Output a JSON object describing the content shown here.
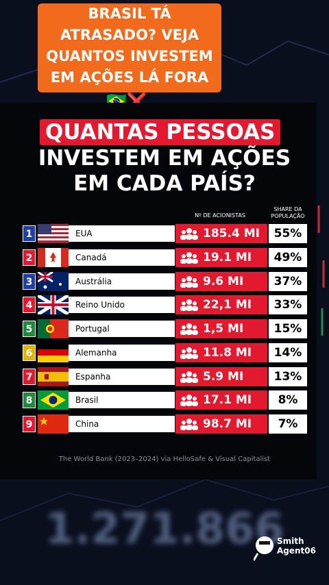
{
  "promo": {
    "lines": [
      "BRASIL TÁ",
      "ATRASADO? VEJA",
      "QUANTOS INVESTEM",
      "EM AÇÕES LÁ FORA"
    ],
    "emoji": "🇧🇷❌"
  },
  "header": {
    "title_highlight": "QUANTAS PESSOAS",
    "title_lines": [
      "INVESTEM EM AÇÕES",
      "EM CADA PAÍS?"
    ]
  },
  "table": {
    "columns": [
      "Nº DE ACIONISTAS",
      "SHARE DA",
      "POPULAÇÃO"
    ],
    "rows": [
      [
        "1",
        "EUA",
        "185.4 MI",
        "55%"
      ],
      [
        "2",
        "Canadá",
        "19.1 MI",
        "49%"
      ],
      [
        "3",
        "Austrália",
        "9.6 MI",
        "37%"
      ],
      [
        "4",
        "Reino Unido",
        "22,1 MI",
        "33%"
      ],
      [
        "5",
        "Portugal",
        "1,5 MI",
        "15%"
      ],
      [
        "6",
        "Alemanha",
        "11.8 MI",
        "14%"
      ],
      [
        "7",
        "Espanha",
        "5.9 MI",
        "13%"
      ],
      [
        "8",
        "Brasil",
        "17.1 MI",
        "8%"
      ],
      [
        "9",
        "China",
        "98.7 MI",
        "7%"
      ]
    ]
  },
  "source": "The World Bank (2023–2024) via HelloSafe & Visual Capitalist",
  "background_number": "1.271.866",
  "watermark": [
    "Smith",
    "Agent06"
  ]
}
